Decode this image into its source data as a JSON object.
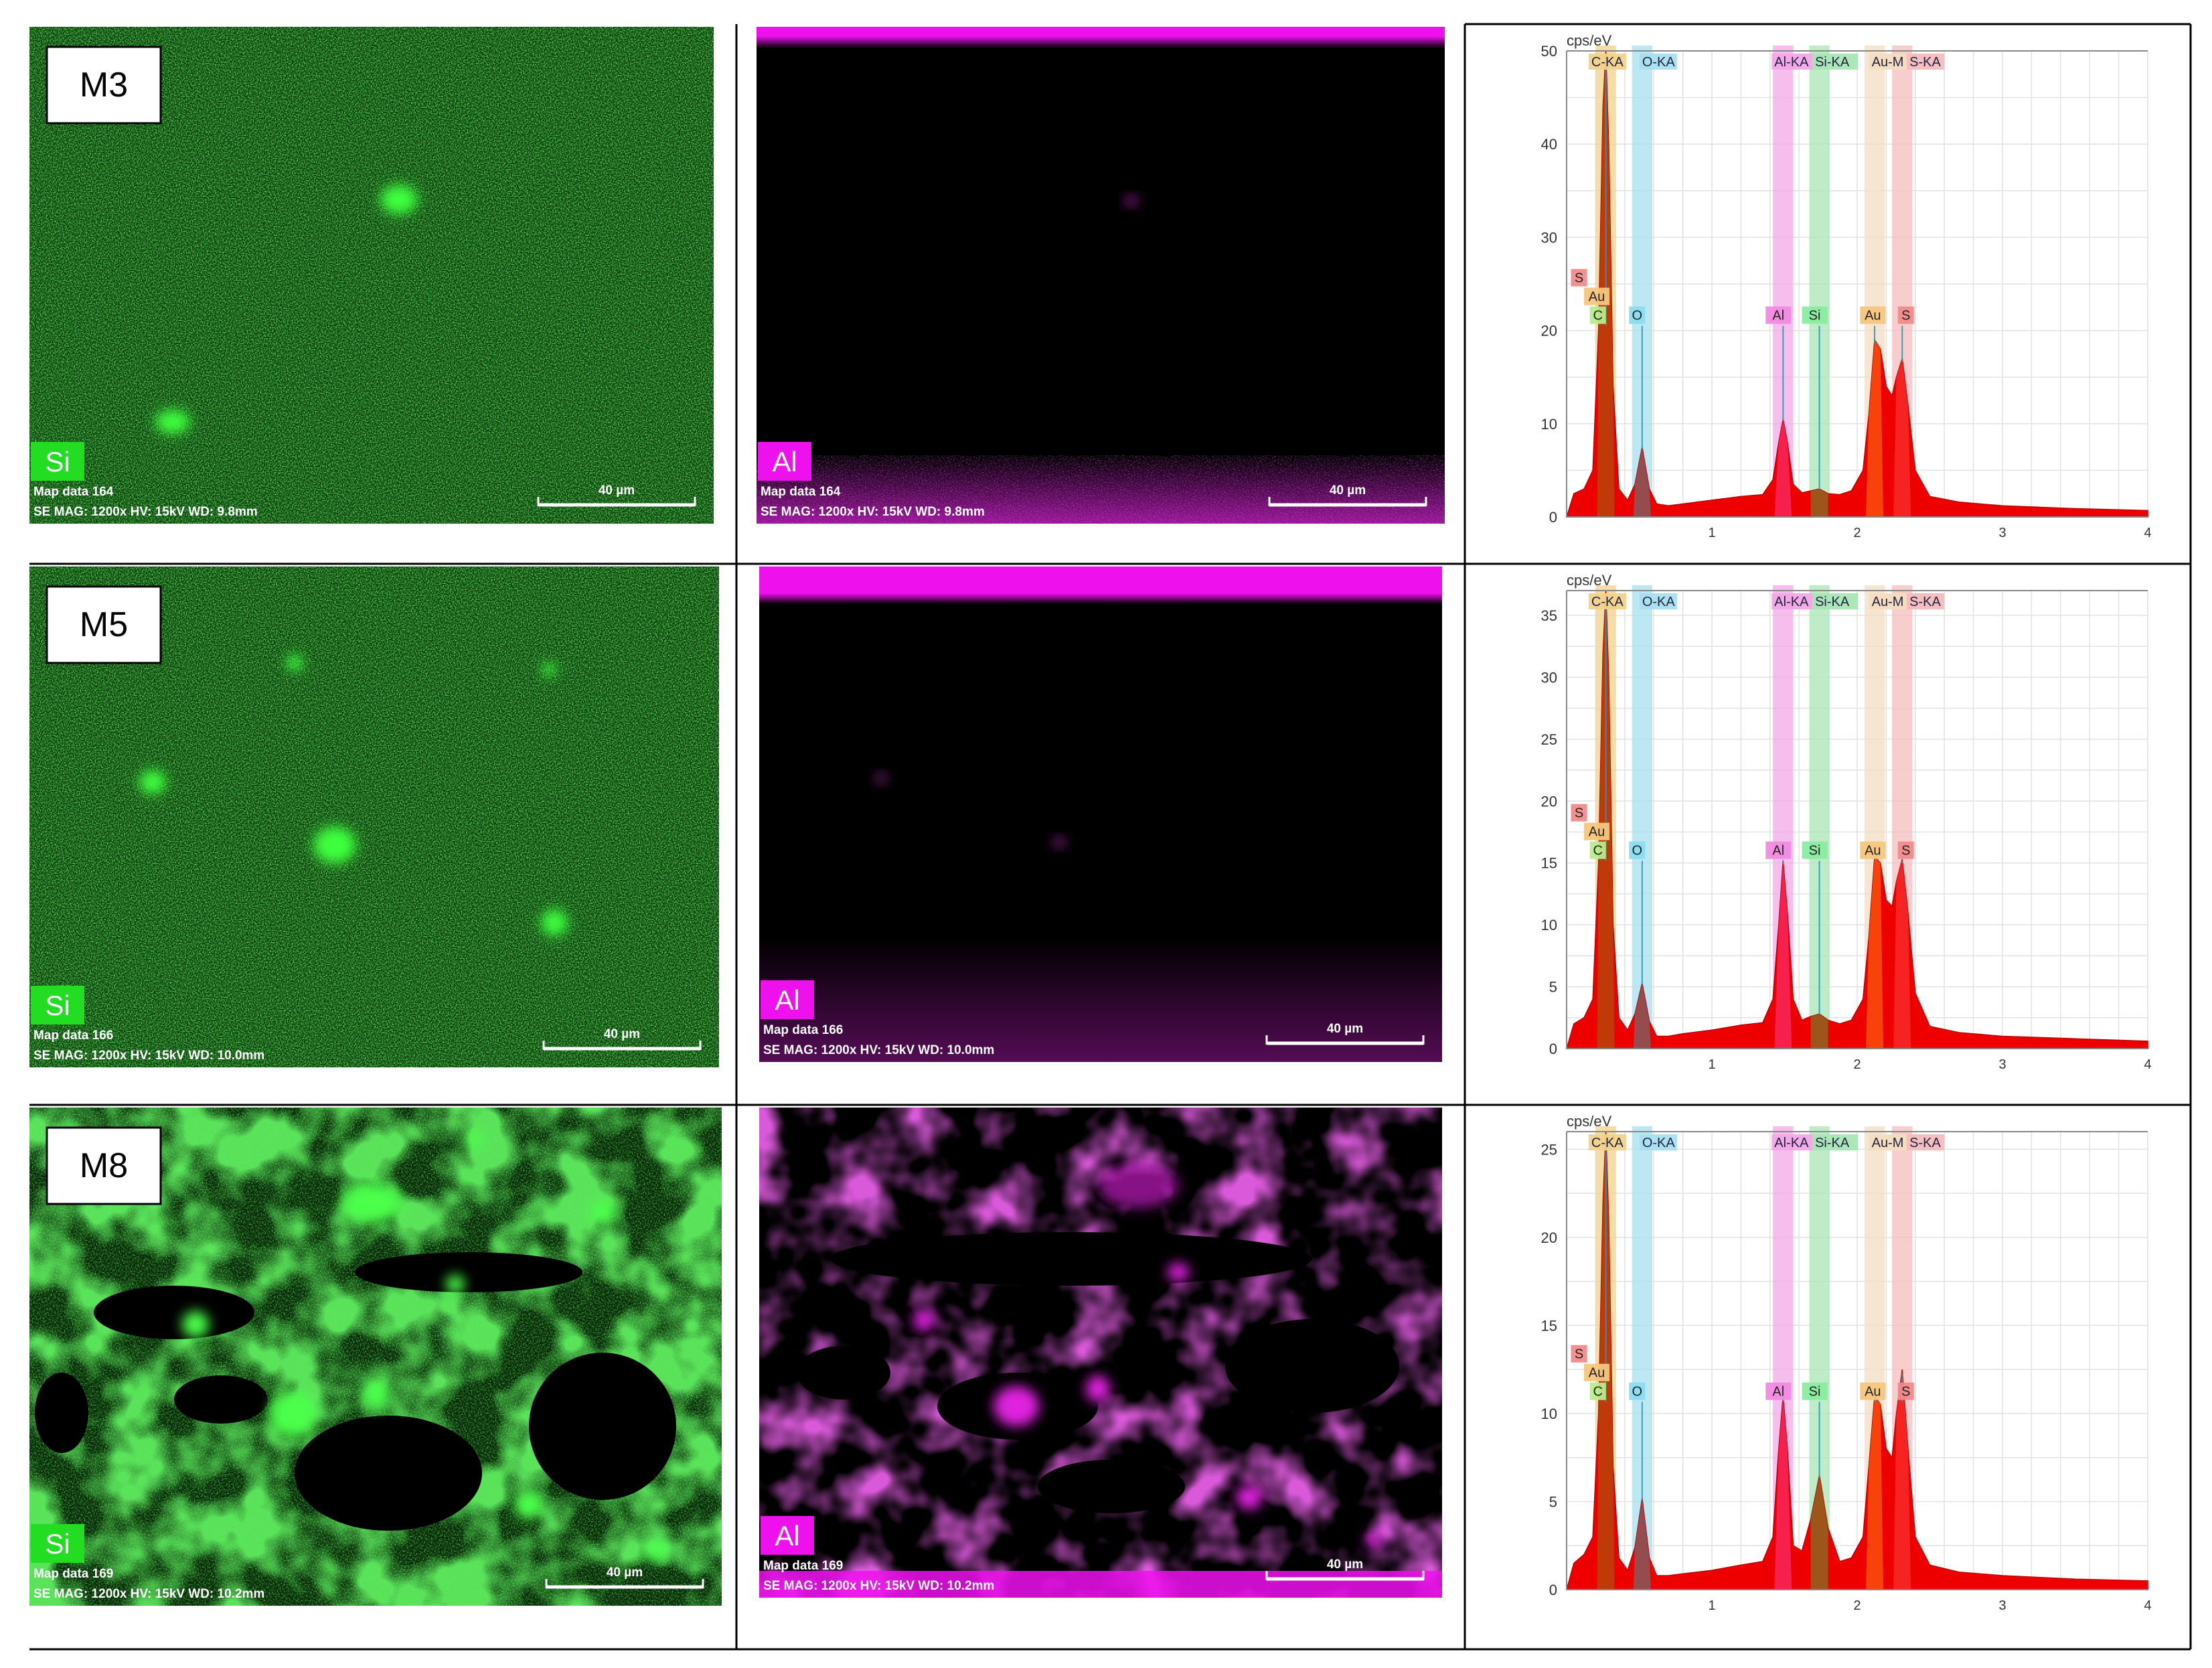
{
  "sample_labels": [
    "M3",
    "M5",
    "M8"
  ],
  "map_labels": {
    "si": "Si",
    "al": "Al"
  },
  "scalebar_label": "40 µm",
  "rows": [
    {
      "sample": "M3",
      "si_map": {
        "caption1": "Map data 164",
        "caption2": "SE  MAG: 1200x  HV: 15kV  WD: 9.8mm"
      },
      "al_map": {
        "caption1": "Map data 164",
        "caption2": "SE  MAG: 1200x  HV: 15kV  WD: 9.8mm"
      }
    },
    {
      "sample": "M5",
      "si_map": {
        "caption1": "Map data 166",
        "caption2": "SE  MAG: 1200x  HV: 15kV  WD: 10.0mm"
      },
      "al_map": {
        "caption1": "Map data 166",
        "caption2": "SE  MAG: 1200x  HV: 15kV  WD: 10.0mm"
      }
    },
    {
      "sample": "M8",
      "si_map": {
        "caption1": "Map data 169",
        "caption2": "SE  MAG: 1200x  HV: 15kV  WD: 10.2mm"
      },
      "al_map": {
        "caption1": "Map data 169",
        "caption2": "SE  MAG: 1200x  HV: 15kV  WD: 10.2mm"
      }
    }
  ],
  "colors": {
    "si_map": "#1fbf1f",
    "si_label_bg": "#22dd22",
    "al_map": "#cc22cc",
    "al_label_bg": "#ee11ee",
    "spectrum_fill": "#ee0000",
    "band_C": "#f2d28a",
    "band_O": "#a8dff0",
    "band_Al": "#f2a8e6",
    "band_Si": "#a8e6b4",
    "band_Au": "#f3dcc0",
    "band_S": "#f6bcbc"
  },
  "chart_data": [
    {
      "type": "area",
      "title": "M3",
      "ylabel": "cps/eV",
      "xlim": [
        0,
        4
      ],
      "ylim": [
        0,
        50
      ],
      "xticks": [
        1,
        2,
        3,
        4
      ],
      "yticks": [
        0,
        10,
        20,
        30,
        40,
        50
      ],
      "grid": true,
      "line_labels": [
        "C-KA",
        "O-KA",
        "Al-KA",
        "Si-KA",
        "Au-M",
        "S-KA"
      ],
      "element_markers": [
        "S",
        "Au",
        "C",
        "O",
        "Al",
        "Si",
        "Au",
        "S"
      ],
      "peaks": [
        {
          "element": "C",
          "x": 0.27,
          "y": 50
        },
        {
          "element": "O",
          "x": 0.52,
          "y": 7.5
        },
        {
          "element": "Al",
          "x": 1.49,
          "y": 10.5
        },
        {
          "element": "Si",
          "x": 1.74,
          "y": 3
        },
        {
          "element": "Au",
          "x": 2.12,
          "y": 19
        },
        {
          "element": "S",
          "x": 2.31,
          "y": 17
        }
      ],
      "x": [
        0,
        0.05,
        0.12,
        0.18,
        0.22,
        0.25,
        0.27,
        0.29,
        0.32,
        0.36,
        0.42,
        0.47,
        0.52,
        0.57,
        0.62,
        0.7,
        0.8,
        1.0,
        1.2,
        1.35,
        1.42,
        1.46,
        1.49,
        1.52,
        1.56,
        1.62,
        1.68,
        1.74,
        1.8,
        1.88,
        1.96,
        2.04,
        2.08,
        2.12,
        2.16,
        2.2,
        2.24,
        2.27,
        2.31,
        2.35,
        2.4,
        2.5,
        2.7,
        3.0,
        3.5,
        4.0
      ],
      "values": [
        0,
        2.5,
        3,
        5,
        20,
        44,
        50,
        40,
        14,
        3,
        1.8,
        3.5,
        7.5,
        3,
        1.4,
        1.2,
        1.4,
        1.8,
        2.2,
        2.4,
        4,
        8,
        10.5,
        8,
        3.5,
        2.6,
        2.8,
        3,
        2.5,
        2.4,
        2.8,
        5,
        11,
        19,
        18,
        14,
        13,
        15,
        17,
        12,
        5,
        2.2,
        1.6,
        1.2,
        0.9,
        0.7
      ]
    },
    {
      "type": "area",
      "title": "M5",
      "ylabel": "cps/eV",
      "xlim": [
        0,
        4
      ],
      "ylim": [
        0,
        37
      ],
      "xticks": [
        1,
        2,
        3,
        4
      ],
      "yticks": [
        0,
        5,
        10,
        15,
        20,
        25,
        30,
        35
      ],
      "grid": true,
      "line_labels": [
        "C-KA",
        "O-KA",
        "Al-KA",
        "Si-KA",
        "Au-M",
        "S-KA"
      ],
      "element_markers": [
        "S",
        "Au",
        "C",
        "O",
        "Al",
        "Si",
        "Au",
        "S"
      ],
      "peaks": [
        {
          "element": "C",
          "x": 0.27,
          "y": 37
        },
        {
          "element": "O",
          "x": 0.52,
          "y": 5.3
        },
        {
          "element": "Al",
          "x": 1.49,
          "y": 15.2
        },
        {
          "element": "Si",
          "x": 1.74,
          "y": 2.8
        },
        {
          "element": "Au",
          "x": 2.12,
          "y": 15.5
        },
        {
          "element": "S",
          "x": 2.31,
          "y": 15.3
        }
      ],
      "x": [
        0,
        0.05,
        0.12,
        0.18,
        0.22,
        0.25,
        0.27,
        0.29,
        0.32,
        0.36,
        0.42,
        0.47,
        0.52,
        0.57,
        0.62,
        0.7,
        0.8,
        1.0,
        1.2,
        1.35,
        1.42,
        1.46,
        1.49,
        1.52,
        1.56,
        1.62,
        1.68,
        1.74,
        1.8,
        1.88,
        1.96,
        2.04,
        2.08,
        2.12,
        2.16,
        2.2,
        2.24,
        2.27,
        2.31,
        2.35,
        2.4,
        2.5,
        2.7,
        3.0,
        3.5,
        4.0
      ],
      "values": [
        0,
        2,
        2.5,
        4,
        15,
        32,
        37,
        30,
        10,
        2.5,
        1.5,
        2.8,
        5.3,
        2.2,
        1,
        1,
        1.2,
        1.5,
        1.9,
        2.1,
        4,
        10,
        15.2,
        11,
        4,
        2.3,
        2.6,
        2.8,
        2.3,
        2,
        2.3,
        4,
        9,
        15.5,
        15,
        12,
        11.5,
        13.5,
        15.3,
        11,
        4.5,
        1.8,
        1.3,
        1,
        0.8,
        0.6
      ]
    },
    {
      "type": "area",
      "title": "M8",
      "ylabel": "cps/eV",
      "xlim": [
        0,
        4
      ],
      "ylim": [
        0,
        26
      ],
      "xticks": [
        1,
        2,
        3,
        4
      ],
      "yticks": [
        0,
        5,
        10,
        15,
        20,
        25
      ],
      "grid": true,
      "line_labels": [
        "C-KA",
        "O-KA",
        "Al-KA",
        "Si-KA",
        "Au-M",
        "S-KA"
      ],
      "element_markers": [
        "S",
        "Au",
        "C",
        "O",
        "Al",
        "Si",
        "Au",
        "S"
      ],
      "peaks": [
        {
          "element": "C",
          "x": 0.27,
          "y": 26
        },
        {
          "element": "O",
          "x": 0.52,
          "y": 5.2
        },
        {
          "element": "Al",
          "x": 1.49,
          "y": 11
        },
        {
          "element": "Si",
          "x": 1.74,
          "y": 6.5
        },
        {
          "element": "Au",
          "x": 2.12,
          "y": 11
        },
        {
          "element": "S",
          "x": 2.31,
          "y": 12.5
        }
      ],
      "x": [
        0,
        0.05,
        0.12,
        0.18,
        0.22,
        0.25,
        0.27,
        0.29,
        0.32,
        0.36,
        0.42,
        0.47,
        0.52,
        0.57,
        0.62,
        0.7,
        0.8,
        1.0,
        1.2,
        1.35,
        1.42,
        1.46,
        1.49,
        1.52,
        1.56,
        1.62,
        1.68,
        1.74,
        1.8,
        1.88,
        1.96,
        2.04,
        2.08,
        2.12,
        2.16,
        2.2,
        2.24,
        2.27,
        2.31,
        2.35,
        2.4,
        2.5,
        2.7,
        3.0,
        3.5,
        4.0
      ],
      "values": [
        0,
        1.5,
        2,
        3,
        10,
        22,
        26,
        21,
        7,
        1.8,
        1.1,
        2.4,
        5.2,
        1.8,
        0.8,
        0.8,
        0.9,
        1.1,
        1.4,
        1.6,
        3,
        8,
        11,
        8,
        2.5,
        2.2,
        4,
        6.5,
        3.5,
        1.6,
        1.8,
        3,
        7,
        11,
        10.5,
        8,
        7.5,
        10,
        12.5,
        8,
        3,
        1.4,
        1,
        0.8,
        0.6,
        0.5
      ]
    }
  ]
}
